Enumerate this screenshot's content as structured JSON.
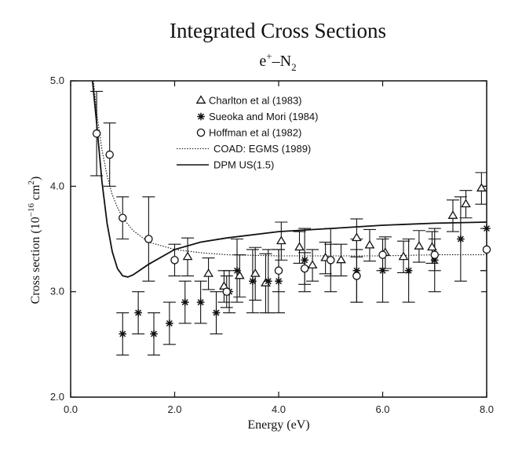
{
  "chart_data": {
    "type": "scatter",
    "title": "Integrated Cross Sections",
    "subtitle_main": "e",
    "subtitle_sup": "+",
    "subtitle_rest": "–N",
    "subtitle_sub": "2",
    "xlabel": "Energy (eV)",
    "ylabel_main": "Cross section (10",
    "ylabel_sup": "−16",
    "ylabel_mid": " cm",
    "ylabel_sup2": "2",
    "ylabel_end": ")",
    "xlim": [
      0,
      8
    ],
    "ylim": [
      2,
      5
    ],
    "xticks": [
      0,
      2,
      4,
      6,
      8
    ],
    "xtick_labels": [
      "0.0",
      "2.0",
      "4.0",
      "6.0",
      "8.0"
    ],
    "yticks": [
      2,
      3,
      4,
      5
    ],
    "ytick_labels": [
      "2.0",
      "3.0",
      "4.0",
      "5.0"
    ],
    "grid": false,
    "legend_position": "top-center",
    "series": [
      {
        "name": "Charlton et al (1983)",
        "marker": "triangle",
        "points": [
          {
            "x": 2.25,
            "y": 3.33,
            "err": 0.18
          },
          {
            "x": 2.65,
            "y": 3.17,
            "err": 0.15
          },
          {
            "x": 2.95,
            "y": 3.05,
            "err": 0.15
          },
          {
            "x": 3.25,
            "y": 3.15,
            "err": 0.2
          },
          {
            "x": 3.55,
            "y": 3.17,
            "err": 0.25
          },
          {
            "x": 3.75,
            "y": 3.08,
            "err": 0.28
          },
          {
            "x": 4.05,
            "y": 3.48,
            "err": 0.18
          },
          {
            "x": 4.4,
            "y": 3.42,
            "err": 0.15
          },
          {
            "x": 4.65,
            "y": 3.25,
            "err": 0.15
          },
          {
            "x": 4.9,
            "y": 3.32,
            "err": 0.15
          },
          {
            "x": 5.2,
            "y": 3.3,
            "err": 0.15
          },
          {
            "x": 5.5,
            "y": 3.51,
            "err": 0.18
          },
          {
            "x": 5.75,
            "y": 3.44,
            "err": 0.15
          },
          {
            "x": 6.05,
            "y": 3.37,
            "err": 0.15
          },
          {
            "x": 6.4,
            "y": 3.33,
            "err": 0.15
          },
          {
            "x": 6.7,
            "y": 3.43,
            "err": 0.15
          },
          {
            "x": 6.95,
            "y": 3.42,
            "err": 0.15
          },
          {
            "x": 7.35,
            "y": 3.72,
            "err": 0.15
          },
          {
            "x": 7.6,
            "y": 3.83,
            "err": 0.13
          },
          {
            "x": 7.9,
            "y": 3.98,
            "err": 0.15
          }
        ]
      },
      {
        "name": "Sueoka and Mori (1984)",
        "marker": "asterisk",
        "points": [
          {
            "x": 1.0,
            "y": 2.6,
            "err": 0.2
          },
          {
            "x": 1.3,
            "y": 2.8,
            "err": 0.2
          },
          {
            "x": 1.6,
            "y": 2.6,
            "err": 0.2
          },
          {
            "x": 1.9,
            "y": 2.7,
            "err": 0.2
          },
          {
            "x": 2.2,
            "y": 2.9,
            "err": 0.2
          },
          {
            "x": 2.5,
            "y": 2.9,
            "err": 0.2
          },
          {
            "x": 2.8,
            "y": 2.8,
            "err": 0.2
          },
          {
            "x": 3.05,
            "y": 3.0,
            "err": 0.2
          },
          {
            "x": 3.2,
            "y": 3.2,
            "err": 0.3
          },
          {
            "x": 3.5,
            "y": 3.1,
            "err": 0.3
          },
          {
            "x": 3.8,
            "y": 3.1,
            "err": 0.3
          },
          {
            "x": 4.0,
            "y": 3.1,
            "err": 0.3
          },
          {
            "x": 4.5,
            "y": 3.3,
            "err": 0.3
          },
          {
            "x": 5.0,
            "y": 3.3,
            "err": 0.3
          },
          {
            "x": 5.5,
            "y": 3.2,
            "err": 0.3
          },
          {
            "x": 6.0,
            "y": 3.2,
            "err": 0.3
          },
          {
            "x": 6.5,
            "y": 3.2,
            "err": 0.3
          },
          {
            "x": 7.0,
            "y": 3.3,
            "err": 0.3
          },
          {
            "x": 7.5,
            "y": 3.5,
            "err": 0.4
          },
          {
            "x": 8.0,
            "y": 3.6,
            "err": 0.4
          }
        ]
      },
      {
        "name": "Hoffman et al (1982)",
        "marker": "circle",
        "points": [
          {
            "x": 0.5,
            "y": 4.5,
            "err": 0.4
          },
          {
            "x": 0.75,
            "y": 4.3,
            "err": 0.3
          },
          {
            "x": 1.0,
            "y": 3.7,
            "err": 0.2
          },
          {
            "x": 1.5,
            "y": 3.5,
            "err": 0.4
          },
          {
            "x": 2.0,
            "y": 3.3,
            "err": 0.15
          },
          {
            "x": 3.0,
            "y": 3.0,
            "err": 0.15
          },
          {
            "x": 4.0,
            "y": 3.2,
            "err": 0.2
          },
          {
            "x": 4.5,
            "y": 3.22,
            "err": 0.15
          },
          {
            "x": 5.0,
            "y": 3.3,
            "err": 0.15
          },
          {
            "x": 5.5,
            "y": 3.15,
            "err": 0.25
          },
          {
            "x": 6.0,
            "y": 3.35,
            "err": 0.15
          },
          {
            "x": 7.0,
            "y": 3.35,
            "err": 0.15
          },
          {
            "x": 8.0,
            "y": 3.4,
            "err": 0.2
          }
        ]
      },
      {
        "name": "COAD: EGMS (1989)",
        "style": "dotted-line",
        "x": [
          0.42,
          0.5,
          0.6,
          0.7,
          0.8,
          0.9,
          1.0,
          1.2,
          1.5,
          2.0,
          2.5,
          3.0,
          4.0,
          5.0,
          6.0,
          7.0,
          8.0
        ],
        "y": [
          5.1,
          4.7,
          4.35,
          4.1,
          3.92,
          3.8,
          3.7,
          3.58,
          3.47,
          3.4,
          3.37,
          3.35,
          3.34,
          3.34,
          3.34,
          3.35,
          3.35
        ]
      },
      {
        "name": "DPM US(1.5)",
        "style": "solid-line",
        "x": [
          0.4,
          0.5,
          0.6,
          0.7,
          0.8,
          0.9,
          1.0,
          1.1,
          1.2,
          1.5,
          2.0,
          2.5,
          3.0,
          4.0,
          5.0,
          6.0,
          7.0,
          8.0
        ],
        "y": [
          5.1,
          4.6,
          4.05,
          3.65,
          3.38,
          3.22,
          3.15,
          3.14,
          3.16,
          3.26,
          3.4,
          3.47,
          3.51,
          3.57,
          3.6,
          3.63,
          3.65,
          3.66
        ]
      }
    ]
  }
}
